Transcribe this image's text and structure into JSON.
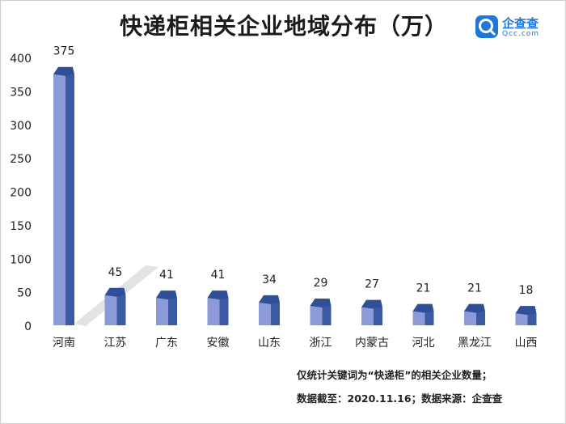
{
  "title": "快递柜相关企业地域分布（万）",
  "logo": {
    "name_cn": "企查查",
    "name_en": "Qcc.com",
    "icon": "qcc-logo-icon"
  },
  "colors": {
    "bar_front": "#8d9ad8",
    "bar_side": "#3c5aa4",
    "bar_top": "#2f4f96",
    "text": "#222222"
  },
  "chart_data": {
    "type": "bar",
    "title": "快递柜相关企业地域分布（万）",
    "xlabel": "",
    "ylabel": "",
    "ylim": [
      0,
      400
    ],
    "yticks": [
      0,
      50,
      100,
      150,
      200,
      250,
      300,
      350,
      400
    ],
    "categories": [
      "河南",
      "江苏",
      "广东",
      "安徽",
      "山东",
      "浙江",
      "内蒙古",
      "河北",
      "黑龙江",
      "山西"
    ],
    "values": [
      375,
      45,
      41,
      41,
      34,
      29,
      27,
      21,
      21,
      18
    ],
    "data_labels": [
      "375",
      "45",
      "41",
      "41",
      "34",
      "29",
      "27",
      "21",
      "21",
      "18"
    ],
    "grid": false,
    "legend": "none"
  },
  "notes": {
    "line1": "仅统计关键词为“快递柜”的相关企业数量；",
    "line2": "数据截至：2020.11.16；数据来源：企查查"
  }
}
